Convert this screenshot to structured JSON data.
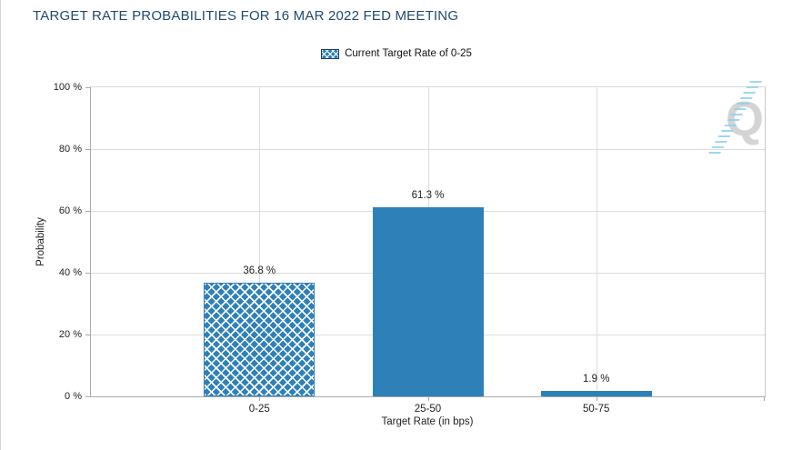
{
  "header": {
    "title": "TARGET RATE PROBABILITIES FOR 16 MAR 2022 FED MEETING"
  },
  "legend": {
    "label": "Current Target Rate of 0-25",
    "swatch": "blue-crosshatch"
  },
  "watermark": {
    "letter": "Q"
  },
  "chart_data": {
    "type": "bar",
    "title": "TARGET RATE PROBABILITIES FOR 16 MAR 2022 FED MEETING",
    "categories": [
      "0-25",
      "25-50",
      "50-75"
    ],
    "values": [
      36.8,
      61.3,
      1.9
    ],
    "value_labels": [
      "36.8 %",
      "61.3 %",
      "1.9 %"
    ],
    "xlabel": "Target Rate (in bps)",
    "ylabel": "Probability",
    "ylim": [
      0,
      100
    ],
    "yticks": [
      0,
      20,
      40,
      60,
      80,
      100
    ],
    "ytick_labels": [
      "0 %",
      "20 %",
      "40 %",
      "60 %",
      "80 %",
      "100 %"
    ],
    "grid": true,
    "legend_entries": [
      "Current Target Rate of 0-25"
    ],
    "legend_position": "top-center",
    "bar_styles": [
      "crosshatch",
      "solid",
      "solid"
    ],
    "colors": {
      "bar": "#2e80b9",
      "hatch_line": "#ffffff",
      "title": "#1f4a70",
      "gridline": "#dcdcdc",
      "axis": "#a9a9a9",
      "label": "#222222",
      "watermark_q": "#d4d4d4",
      "watermark_dash": "#8dd0ee"
    }
  }
}
